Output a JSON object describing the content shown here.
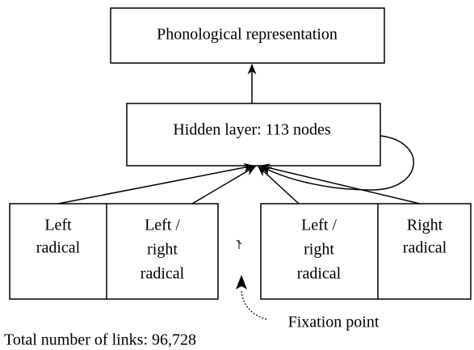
{
  "nodes": [
    {
      "label": "Phonological representation"
    },
    {
      "label": "Hidden layer: 113 nodes"
    },
    {
      "lines": [
        "Left",
        "radical"
      ]
    },
    {
      "lines": [
        "Left /",
        "right",
        "radical"
      ]
    },
    {
      "lines": [
        "Left /",
        "right",
        "radical"
      ]
    },
    {
      "lines": [
        "Right",
        "radical"
      ]
    }
  ],
  "annotations": {
    "fixation": "Fixation point",
    "links": "Total number of links: 96,728"
  }
}
